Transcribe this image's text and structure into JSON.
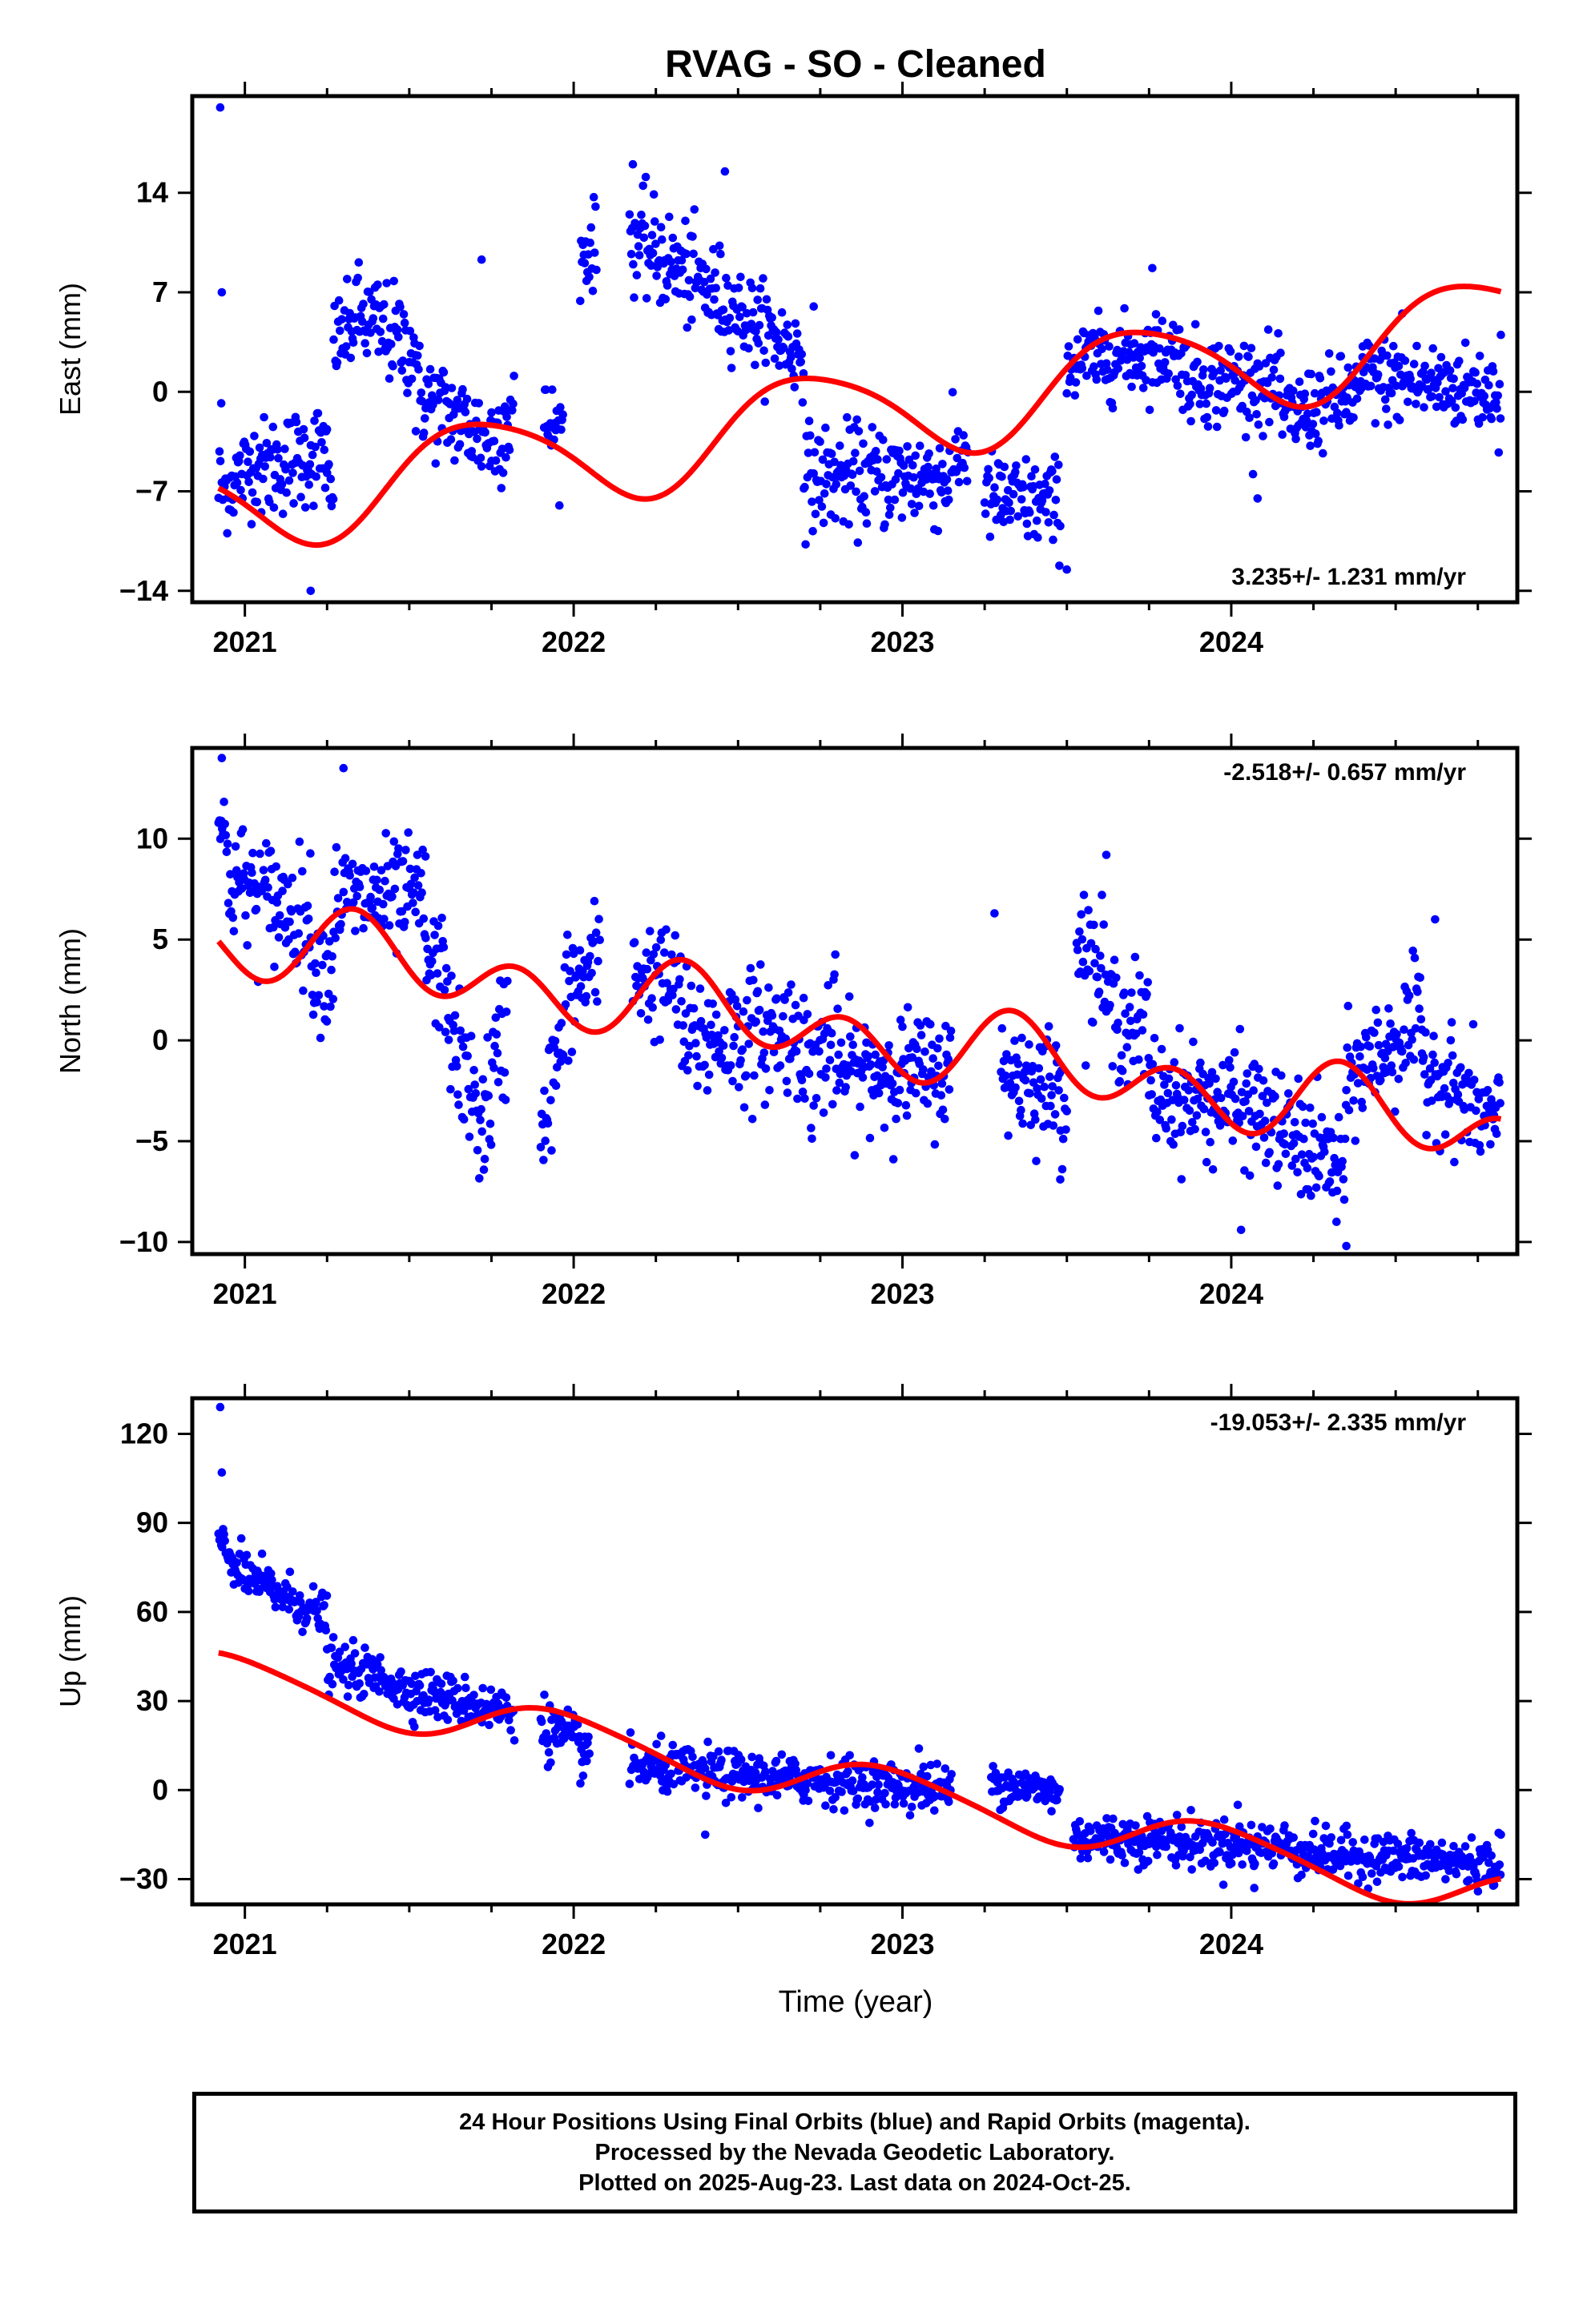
{
  "title": "RVAG  - SO - Cleaned",
  "xlabel": "Time (year)",
  "footer": {
    "line1": "24 Hour Positions Using Final Orbits (blue) and Rapid Orbits (magenta).",
    "line2": "Processed by the Nevada Geodetic Laboratory.",
    "line3": "Plotted on 2025-Aug-23. Last data on 2024-Oct-25."
  },
  "colors": {
    "points": "#0000ff",
    "fit": "#ff0000",
    "frame": "#000000"
  },
  "chart_data": [
    {
      "type": "scatter",
      "ylabel": "East (mm)",
      "rate_label": "3.235+/- 1.231 mm/yr",
      "rate_position": "bottom-right",
      "xlim": [
        2020.84,
        2024.87
      ],
      "ylim": [
        -14.8,
        20.8
      ],
      "x_ticks": [
        2021,
        2022,
        2023,
        2024
      ],
      "x_tick_labels": [
        "2021",
        "2022",
        "2023",
        "2024"
      ],
      "y_ticks": [
        -14,
        -7,
        0,
        7,
        14
      ],
      "y_tick_labels": [
        "−14",
        "−7",
        "0",
        "7",
        "14"
      ],
      "grid": false,
      "segments": [
        [
          2020.92,
          2020.93,
          -7.0,
          -2.0,
          1.5
        ],
        [
          2020.93,
          2021.05,
          -7.0,
          -4.5,
          1.6
        ],
        [
          2021.05,
          2021.25,
          -5.5,
          -4.0,
          1.8
        ],
        [
          2021.25,
          2021.27,
          -7.0,
          -8.0,
          1.5
        ],
        [
          2021.27,
          2021.33,
          3.5,
          4.5,
          1.5
        ],
        [
          2021.33,
          2021.52,
          5.5,
          3.0,
          1.8
        ],
        [
          2021.52,
          2021.75,
          0.0,
          -3.5,
          1.8
        ],
        [
          2021.75,
          2021.82,
          -3.5,
          -1.0,
          2.0
        ],
        [
          2021.91,
          2021.97,
          -2.0,
          -3.0,
          1.5
        ],
        [
          2022.02,
          2022.07,
          9.5,
          10.5,
          1.5
        ],
        [
          2022.17,
          2022.45,
          11.0,
          6.5,
          1.8
        ],
        [
          2022.45,
          2022.7,
          6.5,
          2.5,
          1.5
        ],
        [
          2022.7,
          2023.15,
          -6.0,
          -6.0,
          1.8
        ],
        [
          2023.15,
          2023.2,
          -5.0,
          -4.0,
          1.5
        ],
        [
          2023.25,
          2023.48,
          -7.5,
          -8.0,
          1.6
        ],
        [
          2023.5,
          2023.85,
          2.0,
          3.0,
          1.4
        ],
        [
          2023.85,
          2024.15,
          1.0,
          0.5,
          1.6
        ],
        [
          2024.15,
          2024.4,
          -2.0,
          0.0,
          1.5
        ],
        [
          2024.4,
          2024.82,
          1.0,
          0.0,
          1.5
        ]
      ],
      "outliers": [
        [
          2020.925,
          20.0
        ],
        [
          2020.93,
          7.0
        ],
        [
          2021.2,
          -14.0
        ],
        [
          2021.72,
          9.3
        ],
        [
          2022.18,
          16.0
        ],
        [
          2022.46,
          15.5
        ],
        [
          2022.73,
          6.0
        ],
        [
          2023.5,
          -12.5
        ],
        [
          2023.76,
          8.7
        ],
        [
          2024.08,
          -7.5
        ],
        [
          2024.52,
          5.5
        ],
        [
          2024.82,
          4.0
        ]
      ],
      "fit": {
        "mean": -1.5,
        "rate": 3.235,
        "t0": 2022.9,
        "seasonal": [
          [
            1.0,
            -0.75,
            -3.35
          ],
          [
            2.0,
            0.48,
            0.1
          ]
        ]
      }
    },
    {
      "type": "scatter",
      "ylabel": "North (mm)",
      "rate_label": "-2.518+/- 0.657 mm/yr",
      "rate_position": "top-right",
      "xlim": [
        2020.84,
        2024.87
      ],
      "ylim": [
        -10.6,
        14.5
      ],
      "x_ticks": [
        2021,
        2022,
        2023,
        2024
      ],
      "x_tick_labels": [
        "2021",
        "2022",
        "2023",
        "2024"
      ],
      "y_ticks": [
        -10,
        -5,
        0,
        5,
        10
      ],
      "y_tick_labels": [
        "−10",
        "−5",
        "0",
        "5",
        "10"
      ],
      "grid": false,
      "segments": [
        [
          2020.92,
          2020.95,
          11.0,
          9.0,
          1.3
        ],
        [
          2020.95,
          2021.2,
          8.0,
          6.0,
          1.5
        ],
        [
          2021.2,
          2021.27,
          4.0,
          3.5,
          1.4
        ],
        [
          2021.27,
          2021.55,
          7.0,
          7.0,
          1.4
        ],
        [
          2021.55,
          2021.62,
          4.0,
          3.0,
          1.5
        ],
        [
          2021.62,
          2021.73,
          0.5,
          -4.5,
          1.6
        ],
        [
          2021.73,
          2021.8,
          -3.5,
          1.0,
          1.8
        ],
        [
          2021.9,
          2021.97,
          -4.0,
          0.0,
          1.5
        ],
        [
          2021.97,
          2022.08,
          2.0,
          4.0,
          1.5
        ],
        [
          2022.18,
          2022.33,
          3.5,
          2.5,
          1.4
        ],
        [
          2022.33,
          2022.7,
          0.0,
          0.5,
          1.6
        ],
        [
          2022.7,
          2022.8,
          -2.0,
          0.5,
          1.8
        ],
        [
          2022.8,
          2023.15,
          -1.5,
          -1.5,
          1.4
        ],
        [
          2023.3,
          2023.5,
          -1.5,
          -2.5,
          1.4
        ],
        [
          2023.53,
          2023.62,
          5.0,
          3.0,
          1.5
        ],
        [
          2023.62,
          2023.75,
          1.5,
          0.5,
          1.5
        ],
        [
          2023.75,
          2024.1,
          -2.5,
          -3.5,
          1.4
        ],
        [
          2024.1,
          2024.35,
          -4.0,
          -6.5,
          1.4
        ],
        [
          2024.35,
          2024.58,
          -2.0,
          1.0,
          1.4
        ],
        [
          2024.58,
          2024.82,
          -1.0,
          -4.5,
          1.4
        ]
      ],
      "outliers": [
        [
          2020.93,
          14.0
        ],
        [
          2021.3,
          13.5
        ],
        [
          2023.28,
          6.3
        ],
        [
          2023.62,
          9.2
        ],
        [
          2024.03,
          -9.4
        ],
        [
          2024.35,
          -10.2
        ],
        [
          2024.32,
          -9.0
        ],
        [
          2024.62,
          6.0
        ],
        [
          2023.48,
          -6.9
        ]
      ],
      "fit": {
        "mean": 0.2,
        "rate": -2.518,
        "t0": 2022.9,
        "seasonal": [
          [
            1.0,
            -0.65,
            0.58
          ],
          [
            2.0,
            -0.9,
            -1.25
          ]
        ]
      }
    },
    {
      "type": "scatter",
      "ylabel": "Up (mm)",
      "rate_label": "-19.053+/- 2.335 mm/yr",
      "rate_position": "top-right",
      "xlim": [
        2020.84,
        2024.87
      ],
      "ylim": [
        -38.5,
        132.0
      ],
      "x_ticks": [
        2021,
        2022,
        2023,
        2024
      ],
      "x_tick_labels": [
        "2021",
        "2022",
        "2023",
        "2024"
      ],
      "y_ticks": [
        -30,
        0,
        30,
        60,
        90,
        120
      ],
      "y_tick_labels": [
        "−30",
        "0",
        "30",
        "60",
        "90",
        "120"
      ],
      "grid": false,
      "segments": [
        [
          2020.92,
          2020.97,
          86.0,
          76.0,
          3.5
        ],
        [
          2020.97,
          2021.25,
          74.0,
          58.0,
          4.0
        ],
        [
          2021.25,
          2021.45,
          42.0,
          37.0,
          4.0
        ],
        [
          2021.45,
          2021.82,
          35.0,
          26.0,
          4.0
        ],
        [
          2021.9,
          2022.05,
          22.0,
          12.0,
          5.0
        ],
        [
          2022.17,
          2022.7,
          8.0,
          3.0,
          4.0
        ],
        [
          2022.7,
          2023.15,
          4.0,
          0.0,
          4.0
        ],
        [
          2023.27,
          2023.48,
          3.0,
          -1.0,
          3.5
        ],
        [
          2023.52,
          2023.85,
          -16.0,
          -17.0,
          4.0
        ],
        [
          2023.85,
          2024.2,
          -18.0,
          -19.0,
          4.0
        ],
        [
          2024.2,
          2024.82,
          -21.0,
          -25.0,
          4.0
        ]
      ],
      "outliers": [
        [
          2020.925,
          129.0
        ],
        [
          2020.93,
          107.0
        ],
        [
          2022.4,
          -15.0
        ],
        [
          2023.05,
          14.0
        ],
        [
          2024.02,
          -5.0
        ],
        [
          2024.07,
          -33.0
        ],
        [
          2024.82,
          -15.0
        ]
      ],
      "fit": {
        "mean": 0.8,
        "rate": -19.053,
        "t0": 2022.9,
        "seasonal": [
          [
            1.0,
            7.5,
            -1.8
          ],
          [
            2.0,
            -0.75,
            -0.8
          ]
        ]
      }
    }
  ]
}
